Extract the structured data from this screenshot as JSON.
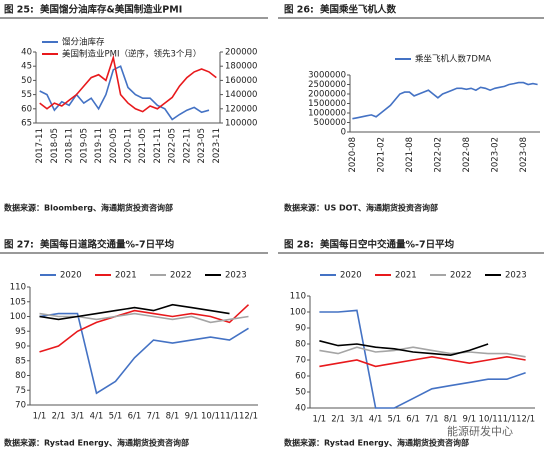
{
  "chart_data": [
    {
      "type": "line",
      "figure_label": "图 25:",
      "title": "美国馏分油库存&美国制造业PMI",
      "source": "数据来源：Bloomberg、海通期货投资咨询部",
      "categories": [
        "2017-11",
        null,
        "2018-05",
        null,
        "2018-11",
        null,
        "2019-05",
        null,
        "2019-11",
        null,
        "2020-05",
        null,
        "2020-11",
        null,
        "2021-05",
        null,
        "2021-11",
        null,
        "2022-05",
        null,
        "2022-11",
        null,
        "2023-05",
        null,
        "2023-11"
      ],
      "ylim": [
        65,
        40
      ],
      "yticks": [
        40,
        45,
        50,
        55,
        60,
        65
      ],
      "y2lim": [
        100000,
        200000
      ],
      "y2ticks": [
        100000,
        120000,
        140000,
        160000,
        180000,
        200000
      ],
      "legend": "top-left",
      "series": [
        {
          "name": "馏分油库存",
          "color": "#4472c4",
          "axis": "y2",
          "values": [
            145000,
            140000,
            118000,
            130000,
            125000,
            140000,
            128000,
            135000,
            120000,
            140000,
            175000,
            180000,
            150000,
            140000,
            135000,
            135000,
            125000,
            120000,
            105000,
            112000,
            118000,
            122000,
            115000,
            118000,
            null
          ]
        },
        {
          "name": "美国制造业PMI（逆序，领先3个月）",
          "color": "#e8191c",
          "values": [
            58,
            60,
            58,
            59,
            57,
            55,
            52,
            49,
            48,
            50,
            42,
            55,
            58,
            60,
            61,
            59,
            60,
            58,
            56,
            52,
            49,
            47,
            46,
            47,
            49
          ]
        }
      ]
    },
    {
      "type": "line",
      "figure_label": "图 26:",
      "title": "美国乘坐飞机人数",
      "source": "数据来源：US DOT、海通期货投资咨询部",
      "categories": [
        "2020-08",
        null,
        null,
        null,
        null,
        null,
        "2021-02",
        null,
        null,
        null,
        null,
        null,
        "2021-08",
        null,
        null,
        null,
        null,
        null,
        "2022-02",
        null,
        null,
        null,
        null,
        null,
        "2022-08",
        null,
        null,
        null,
        null,
        null,
        "2023-02",
        null,
        null,
        null,
        null,
        null,
        "2023-08",
        null,
        null,
        null
      ],
      "ylim": [
        0,
        3000000
      ],
      "yticks": [
        0,
        500000,
        1000000,
        1500000,
        2000000,
        2500000,
        3000000
      ],
      "legend": "top",
      "series": [
        {
          "name": "乘坐飞机人数7DMA",
          "color": "#4472c4",
          "values": [
            700000,
            750000,
            800000,
            850000,
            900000,
            800000,
            1000000,
            1200000,
            1400000,
            1700000,
            2000000,
            2100000,
            2100000,
            1900000,
            2000000,
            2100000,
            2200000,
            2000000,
            1800000,
            2000000,
            2100000,
            2200000,
            2300000,
            2300000,
            2250000,
            2300000,
            2200000,
            2350000,
            2300000,
            2200000,
            2300000,
            2350000,
            2400000,
            2500000,
            2550000,
            2600000,
            2600000,
            2500000,
            2550000,
            2500000
          ]
        }
      ]
    },
    {
      "type": "line",
      "figure_label": "图 27:",
      "title": "美国每日道路交通量%-7日平均",
      "source": "数据来源：Rystad Energy、海通期货投资咨询部",
      "categories": [
        "1/1",
        "2/1",
        "3/1",
        "4/1",
        "5/1",
        "6/1",
        "7/1",
        "8/1",
        "9/1",
        "10/1",
        "11/1",
        "12/1"
      ],
      "ylim": [
        70,
        110
      ],
      "yticks": [
        70,
        75,
        80,
        85,
        90,
        95,
        100,
        105,
        110
      ],
      "legend": "top",
      "series": [
        {
          "name": "2020",
          "color": "#4472c4",
          "values": [
            100,
            101,
            101,
            74,
            78,
            86,
            92,
            91,
            92,
            93,
            92,
            96
          ]
        },
        {
          "name": "2021",
          "color": "#e8191c",
          "values": [
            88,
            90,
            95,
            98,
            100,
            102,
            101,
            100,
            101,
            100,
            98,
            104
          ]
        },
        {
          "name": "2022",
          "color": "#a5a5a5",
          "values": [
            101,
            100,
            100,
            99,
            100,
            101,
            100,
            99,
            100,
            98,
            99,
            100
          ]
        },
        {
          "name": "2023",
          "color": "#000000",
          "values": [
            100,
            99,
            100,
            101,
            102,
            103,
            102,
            104,
            103,
            102,
            101,
            null
          ]
        }
      ]
    },
    {
      "type": "line",
      "figure_label": "图 28:",
      "title": "美国每日空中交通量%-7日平均",
      "source": "数据来源：Rystad Energy、海通期货投资咨询部",
      "categories": [
        "1/1",
        "2/1",
        "3/1",
        "4/1",
        "5/1",
        "6/1",
        "7/1",
        "8/1",
        "9/1",
        "10/1",
        "11/1",
        "12/1"
      ],
      "ylim": [
        40,
        110
      ],
      "yticks": [
        40,
        50,
        60,
        70,
        80,
        90,
        100,
        110
      ],
      "legend": "top",
      "series": [
        {
          "name": "2020",
          "color": "#4472c4",
          "values": [
            100,
            100,
            101,
            40,
            40,
            46,
            52,
            54,
            56,
            58,
            58,
            62
          ]
        },
        {
          "name": "2021",
          "color": "#e8191c",
          "values": [
            66,
            68,
            70,
            66,
            68,
            70,
            72,
            70,
            68,
            70,
            72,
            70
          ]
        },
        {
          "name": "2022",
          "color": "#a5a5a5",
          "values": [
            76,
            74,
            78,
            75,
            76,
            78,
            76,
            74,
            75,
            74,
            74,
            72
          ]
        },
        {
          "name": "2023",
          "color": "#000000",
          "values": [
            82,
            79,
            80,
            78,
            77,
            75,
            74,
            73,
            76,
            80,
            null,
            null
          ]
        }
      ]
    }
  ],
  "watermark": "能源研发中心"
}
